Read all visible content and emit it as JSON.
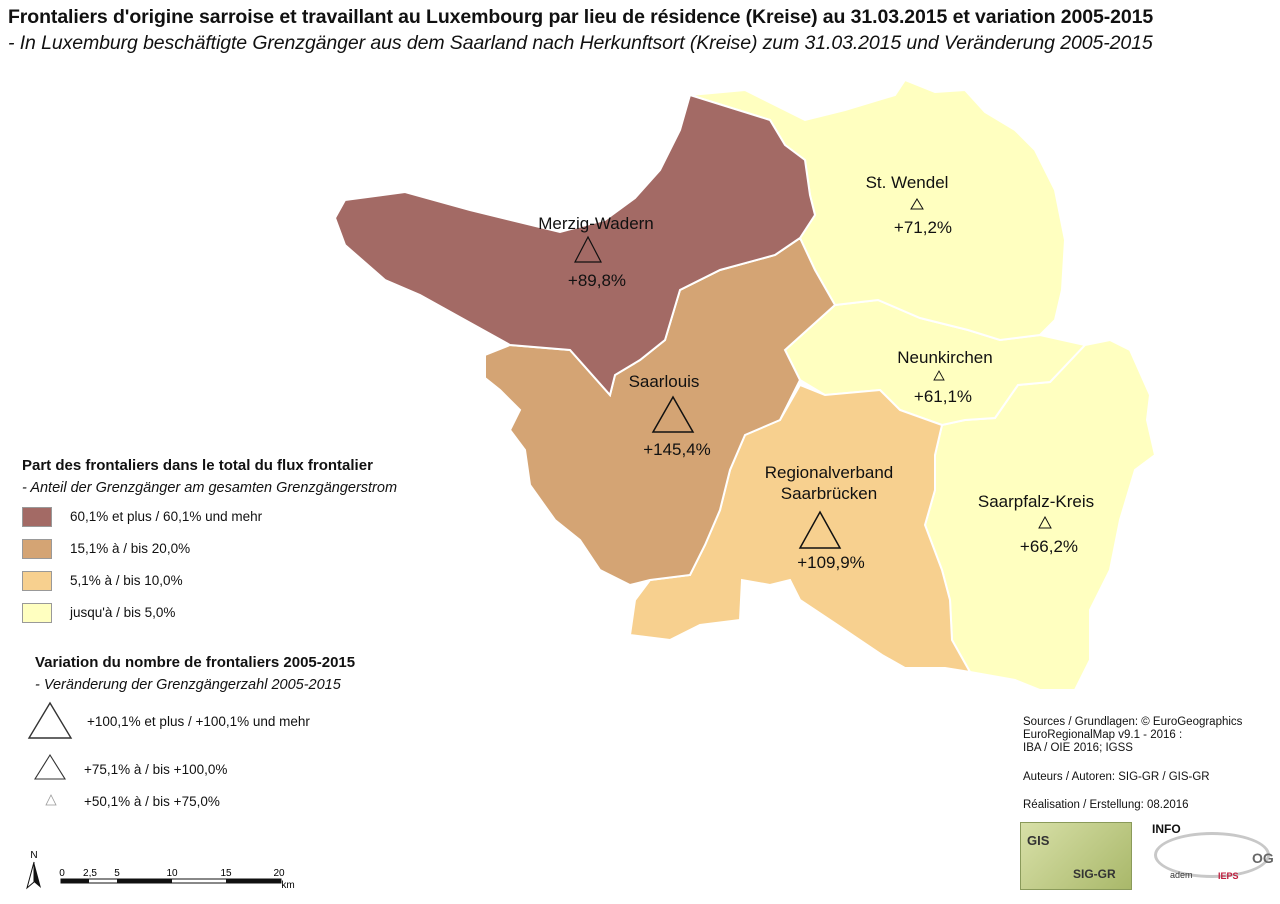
{
  "title": {
    "fr": "Frontaliers d'origine sarroise et travaillant au Luxembourg par lieu de résidence (Kreise) au 31.03.2015 et variation 2005-2015",
    "de": "- In Luxemburg beschäftigte Grenzgänger aus dem Saarland nach Herkunftsort (Kreise) zum 31.03.2015 und Veränderung 2005-2015"
  },
  "regions": [
    {
      "name": "Merzig-Wadern",
      "change": "+89,8%",
      "class": "60,1% et plus / 60,1% und mehr",
      "color": "#a36a65",
      "triangle": "+75,1% à / bis +100,0%"
    },
    {
      "name": "St. Wendel",
      "change": "+71,2%",
      "class": "jusqu'à / bis 5,0%",
      "color": "#ffffc0",
      "triangle": "+50,1% à / bis +75,0%"
    },
    {
      "name": "Saarlouis",
      "change": "+145,4%",
      "class": "15,1% à / bis 20,0%",
      "color": "#d4a474",
      "triangle": "+100,1% et plus / +100,1% und mehr"
    },
    {
      "name": "Neunkirchen",
      "change": "+61,1%",
      "class": "jusqu'à / bis 5,0%",
      "color": "#ffffc0",
      "triangle": "+50,1% à / bis +75,0%"
    },
    {
      "name_line1": "Regionalverband",
      "name_line2": "Saarbrücken",
      "change": "+109,9%",
      "class": "5,1% à / bis 10,0%",
      "color": "#f7d08f",
      "triangle": "+100,1% et plus / +100,1% und mehr"
    },
    {
      "name": "Saarpfalz-Kreis",
      "change": "+66,2%",
      "class": "jusqu'à / bis 5,0%",
      "color": "#ffffc0",
      "triangle": "+50,1% à / bis +75,0%"
    }
  ],
  "legend_share": {
    "heading": "Part des frontaliers dans le total du flux frontalier",
    "subheading": "- Anteil der Grenzgänger am gesamten Grenzgängerstrom",
    "classes": [
      {
        "label": "60,1% et plus / 60,1% und mehr",
        "color": "#a36a65"
      },
      {
        "label": "15,1% à / bis 20,0%",
        "color": "#d4a474"
      },
      {
        "label": "5,1% à / bis 10,0%",
        "color": "#f7d08f"
      },
      {
        "label": "jusqu'à / bis 5,0%",
        "color": "#ffffc0"
      }
    ]
  },
  "legend_change": {
    "heading": "Variation du nombre de frontaliers 2005-2015",
    "subheading": "- Veränderung der Grenzgängerzahl 2005-2015",
    "classes": [
      {
        "label": "+100,1% et plus / +100,1% und mehr"
      },
      {
        "label": "+75,1% à / bis +100,0%"
      },
      {
        "label": "+50,1% à / bis +75,0%"
      }
    ]
  },
  "scale": {
    "north": "N",
    "ticks": [
      "0",
      "2,5",
      "5",
      "10",
      "15",
      "20"
    ],
    "unit": "km"
  },
  "sources": {
    "line1": "Sources / Grundlagen: © EuroGeographics",
    "line2": "EuroRegionalMap v9.1 - 2016 :",
    "line3": "IBA / OIE 2016; IGSS",
    "authors": "Auteurs / Autoren: SIG-GR / GIS-GR",
    "realisation": "Réalisation / Erstellung: 08.2016"
  },
  "logos": {
    "sig": "SIG-GR",
    "adem": "adem",
    "info": "INFO",
    "ieps": "IEPS",
    "og": "OG",
    "gis": "GIS"
  }
}
